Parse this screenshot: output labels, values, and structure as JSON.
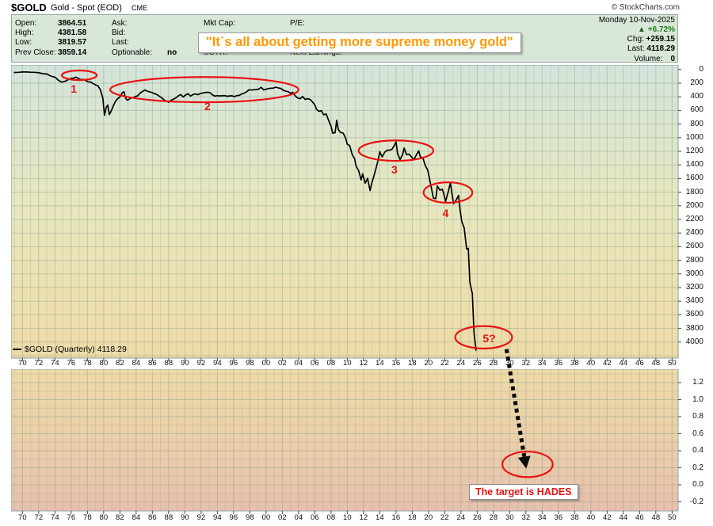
{
  "window": {
    "title_symbol": "$GOLD",
    "title_name": "Gold - Spot (EOD)",
    "title_exchange": "CME",
    "copyright": "© StockCharts.com"
  },
  "legend": {
    "left": [
      {
        "label": "Open:",
        "value": "3864.51"
      },
      {
        "label": "High:",
        "value": "4381.58"
      },
      {
        "label": "Low:",
        "value": "3819.57"
      },
      {
        "label": "Prev Close:",
        "value": "3859.14"
      }
    ],
    "mid": [
      {
        "label": "Ask:",
        "value": ""
      },
      {
        "label": "Bid:",
        "value": ""
      },
      {
        "label": "Last:",
        "value": ""
      },
      {
        "label": "Optionable:",
        "value": "no"
      }
    ],
    "col3": [
      {
        "label": "Mkt Cap:",
        "value": ""
      },
      {
        "label": "SCTR:",
        "value": ""
      }
    ],
    "col4": [
      {
        "label": "P/E:",
        "value": ""
      },
      {
        "label": "Next Earnings:",
        "value": ""
      }
    ],
    "right": {
      "date": "Monday 10-Nov-2025",
      "up_arrow": "▲",
      "pct_change": "+6.72%",
      "chg_label": "Chg:",
      "chg_value": "+259.15",
      "last_label": "Last:",
      "last_value": "4118.29",
      "volume_label": "Volume:",
      "volume_value": "0"
    }
  },
  "quote": "\"It`s all about getting more supreme money gold\"",
  "series_label": "$GOLD (Quarterly) 4118.29",
  "chart_data": {
    "type": "line",
    "title": "$GOLD Gold - Spot (EOD) CME — quarterly closes plotted on an inverted price axis (price increases downward)",
    "legend_position": "bottom-left inside plot",
    "grid": true,
    "colors": {
      "line": "#000000",
      "annotation_red": "#e81212",
      "quote_orange": "#ff9800",
      "panel_green": "#d8e7d8",
      "pct_green": "#1d7a1d"
    },
    "x_axis": {
      "tick_labels": [
        "70",
        "72",
        "74",
        "76",
        "78",
        "80",
        "82",
        "84",
        "86",
        "88",
        "90",
        "92",
        "94",
        "96",
        "98",
        "00",
        "02",
        "04",
        "06",
        "08",
        "10",
        "12",
        "14",
        "16",
        "18",
        "20",
        "22",
        "24",
        "26",
        "28",
        "30",
        "32",
        "34",
        "36",
        "38",
        "40",
        "42",
        "44",
        "46",
        "48",
        "50"
      ],
      "first_tick_year": 1970,
      "tick_step_years": 2,
      "range_years": [
        1968.6,
        2050.8
      ]
    },
    "main_panel": {
      "y_axis_side": "right",
      "y_inverted": true,
      "y_ticks": [
        0,
        200,
        400,
        600,
        800,
        1000,
        1200,
        1400,
        1600,
        1800,
        2000,
        2200,
        2400,
        2600,
        2800,
        3000,
        3200,
        3400,
        3600,
        3800,
        4000
      ],
      "ylim": [
        0,
        4235
      ]
    },
    "lower_panel": {
      "y_axis_side": "right",
      "y_ticks": [
        1.2,
        1.0,
        0.8,
        0.6,
        0.4,
        0.2,
        0.0,
        -0.2
      ],
      "ylim": [
        -0.32,
        1.36
      ],
      "series": []
    },
    "series": [
      {
        "name": "$GOLD (Quarterly)",
        "last": 4118.29,
        "points": [
          [
            1969.0,
            43
          ],
          [
            1969.5,
            41
          ],
          [
            1970.0,
            36
          ],
          [
            1970.5,
            36
          ],
          [
            1971.0,
            39
          ],
          [
            1971.5,
            41
          ],
          [
            1972.0,
            46
          ],
          [
            1972.5,
            60
          ],
          [
            1973.0,
            65
          ],
          [
            1973.3,
            85
          ],
          [
            1973.6,
            100
          ],
          [
            1974.0,
            112
          ],
          [
            1974.4,
            155
          ],
          [
            1974.8,
            185
          ],
          [
            1975.1,
            178
          ],
          [
            1975.4,
            165
          ],
          [
            1975.7,
            142
          ],
          [
            1976.0,
            130
          ],
          [
            1976.3,
            126
          ],
          [
            1976.6,
            110
          ],
          [
            1976.9,
            134
          ],
          [
            1977.2,
            148
          ],
          [
            1977.5,
            145
          ],
          [
            1977.8,
            162
          ],
          [
            1978.1,
            180
          ],
          [
            1978.4,
            184
          ],
          [
            1978.7,
            206
          ],
          [
            1979.0,
            225
          ],
          [
            1979.3,
            240
          ],
          [
            1979.6,
            300
          ],
          [
            1979.9,
            420
          ],
          [
            1980.1,
            670
          ],
          [
            1980.3,
            560
          ],
          [
            1980.5,
            520
          ],
          [
            1980.7,
            660
          ],
          [
            1980.9,
            615
          ],
          [
            1981.1,
            560
          ],
          [
            1981.3,
            500
          ],
          [
            1981.5,
            460
          ],
          [
            1981.7,
            430
          ],
          [
            1982.0,
            400
          ],
          [
            1982.3,
            340
          ],
          [
            1982.5,
            325
          ],
          [
            1982.7,
            420
          ],
          [
            1982.9,
            450
          ],
          [
            1983.1,
            440
          ],
          [
            1983.3,
            420
          ],
          [
            1983.6,
            415
          ],
          [
            1983.9,
            395
          ],
          [
            1984.2,
            385
          ],
          [
            1984.5,
            345
          ],
          [
            1984.8,
            320
          ],
          [
            1985.1,
            300
          ],
          [
            1985.4,
            320
          ],
          [
            1985.7,
            328
          ],
          [
            1986.0,
            340
          ],
          [
            1986.3,
            355
          ],
          [
            1986.6,
            370
          ],
          [
            1986.9,
            395
          ],
          [
            1987.2,
            420
          ],
          [
            1987.5,
            450
          ],
          [
            1987.8,
            465
          ],
          [
            1988.0,
            480
          ],
          [
            1988.3,
            450
          ],
          [
            1988.6,
            435
          ],
          [
            1988.9,
            415
          ],
          [
            1989.2,
            385
          ],
          [
            1989.5,
            368
          ],
          [
            1989.8,
            402
          ],
          [
            1990.1,
            372
          ],
          [
            1990.4,
            355
          ],
          [
            1990.7,
            390
          ],
          [
            1991.0,
            368
          ],
          [
            1991.3,
            358
          ],
          [
            1991.6,
            370
          ],
          [
            1991.9,
            352
          ],
          [
            1992.2,
            344
          ],
          [
            1992.5,
            338
          ],
          [
            1992.8,
            334
          ],
          [
            1993.1,
            340
          ],
          [
            1993.4,
            372
          ],
          [
            1993.7,
            390
          ],
          [
            1994.0,
            382
          ],
          [
            1994.3,
            387
          ],
          [
            1994.6,
            385
          ],
          [
            1994.9,
            383
          ],
          [
            1995.2,
            392
          ],
          [
            1995.5,
            387
          ],
          [
            1995.8,
            385
          ],
          [
            1996.1,
            396
          ],
          [
            1996.4,
            382
          ],
          [
            1996.7,
            379
          ],
          [
            1997.0,
            358
          ],
          [
            1997.3,
            348
          ],
          [
            1997.6,
            325
          ],
          [
            1997.9,
            297
          ],
          [
            1998.2,
            301
          ],
          [
            1998.5,
            296
          ],
          [
            1998.8,
            294
          ],
          [
            1999.1,
            286
          ],
          [
            1999.4,
            261
          ],
          [
            1999.7,
            299
          ],
          [
            2000.0,
            288
          ],
          [
            2000.3,
            279
          ],
          [
            2000.6,
            274
          ],
          [
            2000.9,
            272
          ],
          [
            2001.2,
            258
          ],
          [
            2001.5,
            270
          ],
          [
            2001.8,
            277
          ],
          [
            2002.1,
            302
          ],
          [
            2002.4,
            318
          ],
          [
            2002.7,
            323
          ],
          [
            2003.0,
            348
          ],
          [
            2003.3,
            335
          ],
          [
            2003.6,
            388
          ],
          [
            2003.9,
            417
          ],
          [
            2004.2,
            428
          ],
          [
            2004.5,
            395
          ],
          [
            2004.8,
            438
          ],
          [
            2005.1,
            428
          ],
          [
            2005.4,
            437
          ],
          [
            2005.7,
            473
          ],
          [
            2006.0,
            518
          ],
          [
            2006.2,
            582
          ],
          [
            2006.5,
            613
          ],
          [
            2006.8,
            604
          ],
          [
            2007.1,
            664
          ],
          [
            2007.4,
            651
          ],
          [
            2007.7,
            745
          ],
          [
            2008.0,
            834
          ],
          [
            2008.2,
            934
          ],
          [
            2008.5,
            927
          ],
          [
            2008.7,
            745
          ],
          [
            2008.9,
            885
          ],
          [
            2009.2,
            925
          ],
          [
            2009.5,
            934
          ],
          [
            2009.8,
            1008
          ],
          [
            2010.0,
            1096
          ],
          [
            2010.3,
            1116
          ],
          [
            2010.6,
            1245
          ],
          [
            2010.9,
            1308
          ],
          [
            2011.1,
            1421
          ],
          [
            2011.4,
            1483
          ],
          [
            2011.7,
            1620
          ],
          [
            2011.9,
            1531
          ],
          [
            2012.2,
            1668
          ],
          [
            2012.5,
            1598
          ],
          [
            2012.8,
            1776
          ],
          [
            2013.0,
            1675
          ],
          [
            2013.2,
            1595
          ],
          [
            2013.5,
            1470
          ],
          [
            2013.8,
            1329
          ],
          [
            2014.0,
            1206
          ],
          [
            2014.3,
            1284
          ],
          [
            2014.6,
            1216
          ],
          [
            2014.9,
            1184
          ],
          [
            2015.2,
            1183
          ],
          [
            2015.5,
            1172
          ],
          [
            2015.8,
            1114
          ],
          [
            2016.0,
            1062
          ],
          [
            2016.2,
            1235
          ],
          [
            2016.5,
            1322
          ],
          [
            2016.8,
            1251
          ],
          [
            2017.0,
            1152
          ],
          [
            2017.3,
            1249
          ],
          [
            2017.6,
            1242
          ],
          [
            2017.9,
            1279
          ],
          [
            2018.2,
            1325
          ],
          [
            2018.5,
            1253
          ],
          [
            2018.8,
            1192
          ],
          [
            2019.0,
            1282
          ],
          [
            2019.3,
            1293
          ],
          [
            2019.6,
            1410
          ],
          [
            2019.9,
            1472
          ],
          [
            2020.1,
            1583
          ],
          [
            2020.4,
            1768
          ],
          [
            2020.6,
            1886
          ],
          [
            2020.9,
            1895
          ],
          [
            2021.1,
            1708
          ],
          [
            2021.4,
            1771
          ],
          [
            2021.7,
            1757
          ],
          [
            2021.9,
            1829
          ],
          [
            2022.1,
            1937
          ],
          [
            2022.4,
            1807
          ],
          [
            2022.7,
            1662
          ],
          [
            2022.9,
            1824
          ],
          [
            2023.1,
            1969
          ],
          [
            2023.4,
            1919
          ],
          [
            2023.7,
            1848
          ],
          [
            2023.9,
            2063
          ],
          [
            2024.1,
            2230
          ],
          [
            2024.4,
            2327
          ],
          [
            2024.7,
            2635
          ],
          [
            2024.9,
            2625
          ],
          [
            2025.1,
            3124
          ],
          [
            2025.4,
            3286
          ],
          [
            2025.6,
            3860
          ],
          [
            2025.85,
            4118.29
          ]
        ]
      }
    ],
    "annotations": {
      "ellipses": [
        {
          "panel": "main",
          "label": "1",
          "cx_year": 1977.0,
          "cy_price": 84,
          "rx_years": 2.15,
          "ry_price": 70,
          "label_dx": -7,
          "label_dy": 17
        },
        {
          "panel": "main",
          "label": "2",
          "cx_year": 1992.4,
          "cy_price": 295,
          "rx_years": 11.6,
          "ry_price": 185,
          "label_dx": 4,
          "label_dy": 21
        },
        {
          "panel": "main",
          "label": "3",
          "cx_year": 2016.0,
          "cy_price": 1190,
          "rx_years": 4.6,
          "ry_price": 150,
          "label_dx": -2,
          "label_dy": 24
        },
        {
          "panel": "main",
          "label": "4",
          "cx_year": 2022.4,
          "cy_price": 1805,
          "rx_years": 3.0,
          "ry_price": 150,
          "label_dx": -3,
          "label_dy": 26
        },
        {
          "panel": "main",
          "label": "5?",
          "cx_year": 2026.8,
          "cy_price": 3930,
          "rx_years": 3.5,
          "ry_price": 165,
          "label_dx": 7,
          "label_dy": 1
        },
        {
          "panel": "lower",
          "label": "",
          "cx_year": 2032.2,
          "cy_value": 0.24,
          "rx_years": 3.1,
          "ry_value": 0.15
        }
      ],
      "arrow": {
        "style": "thick-dotted-black",
        "from_panel": "main",
        "from_year": 2029.6,
        "from_price": 4105,
        "to_panel": "lower",
        "to_year": 2031.8,
        "to_value": 0.33
      },
      "hades_label": "The target is HADES"
    }
  }
}
